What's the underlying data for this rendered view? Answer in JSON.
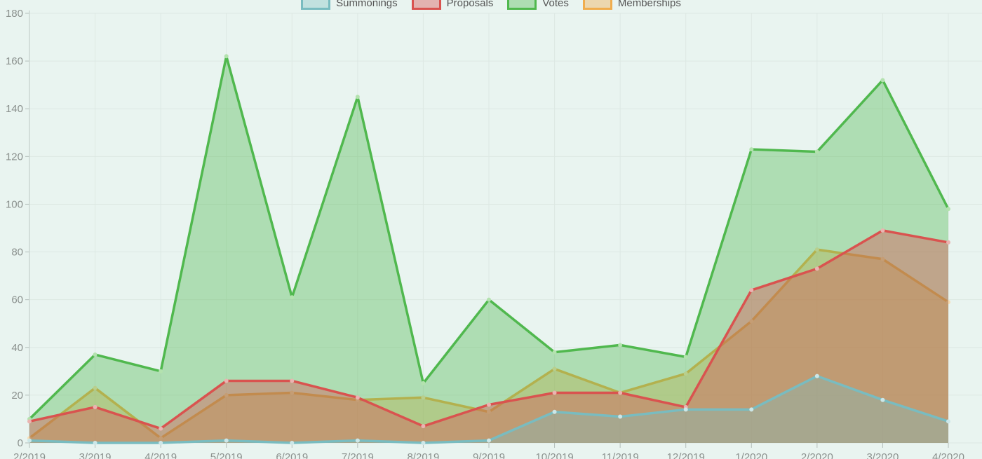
{
  "chart_data": {
    "type": "area",
    "title": "",
    "xlabel": "",
    "ylabel": "",
    "categories": [
      "2/2019",
      "3/2019",
      "4/2019",
      "5/2019",
      "6/2019",
      "7/2019",
      "8/2019",
      "9/2019",
      "10/2019",
      "11/2019",
      "12/2019",
      "1/2020",
      "2/2020",
      "3/2020",
      "4/2020"
    ],
    "series": [
      {
        "name": "Summonings",
        "color": "#79bcc0",
        "point_color": "#cce7e8",
        "fill_alpha": 0.35,
        "values": [
          1,
          0,
          0,
          1,
          0,
          1,
          0,
          1,
          13,
          11,
          14,
          14,
          28,
          18,
          9
        ]
      },
      {
        "name": "Proposals",
        "color": "#d9534f",
        "point_color": "#eab4b1",
        "fill_alpha": 0.4,
        "values": [
          9,
          15,
          6,
          26,
          26,
          19,
          7,
          16,
          21,
          21,
          15,
          64,
          73,
          89,
          84
        ]
      },
      {
        "name": "Votes",
        "color": "#50b84e",
        "point_color": "#b3e2ae",
        "fill_alpha": 0.38,
        "values": [
          10,
          37,
          30,
          162,
          61,
          145,
          25,
          60,
          38,
          41,
          36,
          123,
          122,
          152,
          98
        ]
      },
      {
        "name": "Memberships",
        "color": "#f0ad4e",
        "point_color": "#f8ddb3",
        "fill_alpha": 0.4,
        "values": [
          2,
          23,
          2,
          20,
          21,
          18,
          19,
          13,
          31,
          21,
          29,
          51,
          81,
          77,
          59
        ]
      }
    ],
    "ylim": [
      0,
      180
    ],
    "y_ticks": [
      0,
      20,
      40,
      60,
      80,
      100,
      120,
      140,
      160,
      180
    ],
    "grid": true,
    "legend_position": "top",
    "draw_order": "reverse-of-legend",
    "style": {
      "background": "#e9f4f0",
      "grid_color": "#dde8e3",
      "axis_line_color": "#ccd7d2",
      "tick_color": "#b3beba",
      "tick_label_color": "#8b918e",
      "legend_text_color": "#555555",
      "line_width": 3.5
    }
  }
}
